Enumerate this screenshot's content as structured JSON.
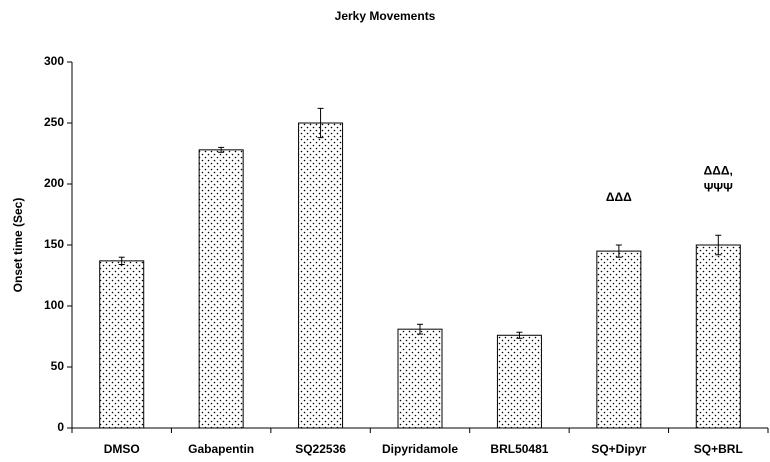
{
  "chart_data": {
    "type": "bar",
    "title": "Jerky Movements",
    "y_label": "Onset time (Sec)",
    "categories": [
      "DMSO",
      "Gabapentin",
      "SQ22536",
      "Dipyridamole",
      "BRL50481",
      "SQ+Dipyr",
      "SQ+BRL"
    ],
    "values": [
      137,
      228,
      250,
      81,
      76,
      145,
      150
    ],
    "errors": [
      3,
      2,
      12,
      4,
      2.5,
      5,
      8
    ],
    "annotations": [
      null,
      null,
      null,
      null,
      null,
      [
        "ΔΔΔ"
      ],
      [
        "ΔΔΔ,",
        "ΨΨΨ"
      ]
    ],
    "color": "#000000",
    "ylim": [
      0,
      300
    ],
    "yticks": [
      0,
      50,
      100,
      150,
      200,
      250,
      300
    ],
    "grid": false
  }
}
